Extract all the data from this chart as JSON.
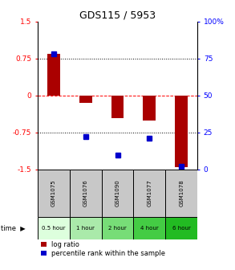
{
  "title": "GDS115 / 5953",
  "samples": [
    "GSM1075",
    "GSM1076",
    "GSM1090",
    "GSM1077",
    "GSM1078"
  ],
  "time_labels": [
    "0.5 hour",
    "1 hour",
    "2 hour",
    "4 hour",
    "6 hour"
  ],
  "time_colors": [
    "#ddffdd",
    "#aaeaaa",
    "#77dd77",
    "#44cc44",
    "#22bb22"
  ],
  "log_ratio": [
    0.85,
    -0.15,
    -0.45,
    -0.5,
    -1.45
  ],
  "percentile_rank": [
    78,
    22,
    10,
    21,
    2
  ],
  "bar_color": "#aa0000",
  "dot_color": "#0000cc",
  "bar_width": 0.4,
  "ylim_left": [
    -1.5,
    1.5
  ],
  "yticks_left": [
    -1.5,
    -0.75,
    0,
    0.75,
    1.5
  ],
  "ytick_labels_left": [
    "-1.5",
    "-0.75",
    "0",
    "0.75",
    "1.5"
  ],
  "ylim_right": [
    0,
    100
  ],
  "yticks_right": [
    0,
    25,
    50,
    75,
    100
  ],
  "ytick_labels_right": [
    "0",
    "25",
    "50",
    "75",
    "100%"
  ],
  "hlines": [
    -0.75,
    0,
    0.75
  ],
  "hline_styles": [
    "dotted",
    "dashed",
    "dotted"
  ],
  "legend_log_ratio": "log ratio",
  "legend_percentile": "percentile rank within the sample",
  "time_label": "time"
}
